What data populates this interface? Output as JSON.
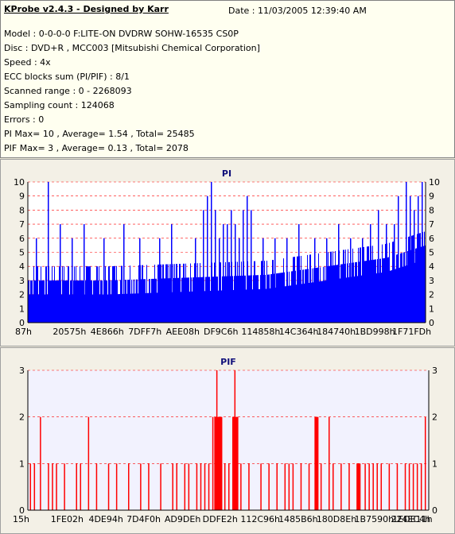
{
  "header": {
    "title": "KProbe v2.4.3 - Designed by Karr",
    "date": "Date : 11/03/2005 12:39:40 AM",
    "lines": [
      "Model : 0-0-0-0 F:LITE-ON DVDRW SOHW-16535 CS0P",
      "Disc : DVD+R , MCC003 [Mitsubishi Chemical Corporation]",
      "Speed : 4x",
      "ECC blocks sum (PI/PIF) : 8/1",
      "Scanned range : 0 - 2268093",
      "Sampling count : 124068",
      "Errors : 0",
      "PI Max= 10 , Average= 1.54 , Total= 25485",
      "PIF Max= 3 , Average= 0.13 , Total= 2078"
    ]
  },
  "colors": {
    "pi": "#0000ff",
    "pif": "#ff0000",
    "grid": "#ff0000"
  },
  "chart_data": [
    {
      "type": "bar",
      "title": "PI",
      "ylim": [
        0,
        10
      ],
      "yticks": [
        0,
        1,
        2,
        3,
        4,
        5,
        6,
        7,
        8,
        9,
        10
      ],
      "xtick_labels": [
        "87h",
        "20575h",
        "4E866h",
        "7DFF7h",
        "AEE08h",
        "DF9C6h",
        "114858h",
        "14C364h",
        "184740h",
        "1BD998h",
        "1F71FDh"
      ],
      "grid": "dashed horizontal",
      "baseline": [
        [
          0,
          3
        ],
        [
          0.2,
          3
        ],
        [
          0.4,
          3.2
        ],
        [
          0.6,
          3.4
        ],
        [
          0.75,
          4
        ],
        [
          0.9,
          4.6
        ],
        [
          1,
          5.5
        ]
      ],
      "spikes": [
        [
          0.02,
          6
        ],
        [
          0.03,
          1
        ],
        [
          0.05,
          10
        ],
        [
          0.08,
          7
        ],
        [
          0.11,
          6
        ],
        [
          0.14,
          7
        ],
        [
          0.19,
          6
        ],
        [
          0.24,
          7
        ],
        [
          0.28,
          6
        ],
        [
          0.33,
          6
        ],
        [
          0.36,
          7
        ],
        [
          0.42,
          6
        ],
        [
          0.44,
          8
        ],
        [
          0.45,
          9
        ],
        [
          0.46,
          10
        ],
        [
          0.47,
          8
        ],
        [
          0.48,
          6
        ],
        [
          0.49,
          7
        ],
        [
          0.5,
          7
        ],
        [
          0.51,
          8
        ],
        [
          0.52,
          7
        ],
        [
          0.53,
          6
        ],
        [
          0.54,
          8
        ],
        [
          0.55,
          9
        ],
        [
          0.56,
          8
        ],
        [
          0.59,
          6
        ],
        [
          0.62,
          6
        ],
        [
          0.65,
          6
        ],
        [
          0.68,
          7
        ],
        [
          0.72,
          6
        ],
        [
          0.75,
          6
        ],
        [
          0.78,
          7
        ],
        [
          0.81,
          6
        ],
        [
          0.84,
          6
        ],
        [
          0.86,
          7
        ],
        [
          0.88,
          8
        ],
        [
          0.9,
          7
        ],
        [
          0.92,
          7
        ],
        [
          0.93,
          9
        ],
        [
          0.95,
          10
        ],
        [
          0.96,
          9
        ],
        [
          0.97,
          8
        ],
        [
          0.98,
          9
        ],
        [
          0.99,
          10
        ]
      ]
    },
    {
      "type": "bar",
      "title": "PIF",
      "ylim": [
        0,
        3
      ],
      "yticks": [
        0,
        1,
        2,
        3
      ],
      "xtick_labels": [
        "15h",
        "1FE02h",
        "4DE94h",
        "7D4F0h",
        "AD9DEh",
        "DDFE2h",
        "112C96h",
        "1485B6h",
        "180D8Eh",
        "1B7590h",
        "1EDE11h",
        "224EC4h"
      ],
      "grid": "dashed horizontal",
      "spikes": [
        [
          0.005,
          1
        ],
        [
          0.015,
          1
        ],
        [
          0.03,
          2
        ],
        [
          0.05,
          1
        ],
        [
          0.06,
          1
        ],
        [
          0.07,
          1
        ],
        [
          0.09,
          1
        ],
        [
          0.12,
          1
        ],
        [
          0.13,
          1
        ],
        [
          0.15,
          2
        ],
        [
          0.17,
          1
        ],
        [
          0.2,
          1
        ],
        [
          0.22,
          1
        ],
        [
          0.25,
          1
        ],
        [
          0.28,
          1
        ],
        [
          0.3,
          1
        ],
        [
          0.33,
          1
        ],
        [
          0.36,
          1
        ],
        [
          0.37,
          1
        ],
        [
          0.39,
          1
        ],
        [
          0.4,
          1
        ],
        [
          0.42,
          1
        ],
        [
          0.43,
          1
        ],
        [
          0.44,
          1
        ],
        [
          0.45,
          1
        ],
        [
          0.46,
          2
        ],
        [
          0.47,
          3
        ],
        [
          0.475,
          2
        ],
        [
          0.48,
          2
        ],
        [
          0.49,
          1
        ],
        [
          0.5,
          1
        ],
        [
          0.51,
          2
        ],
        [
          0.515,
          3
        ],
        [
          0.52,
          2
        ],
        [
          0.53,
          1
        ],
        [
          0.55,
          1
        ],
        [
          0.58,
          1
        ],
        [
          0.6,
          1
        ],
        [
          0.62,
          1
        ],
        [
          0.64,
          1
        ],
        [
          0.65,
          1
        ],
        [
          0.66,
          1
        ],
        [
          0.68,
          1
        ],
        [
          0.7,
          1
        ],
        [
          0.72,
          1
        ],
        [
          0.73,
          1
        ],
        [
          0.75,
          2
        ],
        [
          0.76,
          1
        ],
        [
          0.78,
          1
        ],
        [
          0.8,
          1
        ],
        [
          0.82,
          1
        ],
        [
          0.84,
          1
        ],
        [
          0.85,
          1
        ],
        [
          0.86,
          1
        ],
        [
          0.87,
          1
        ],
        [
          0.88,
          1
        ],
        [
          0.9,
          1
        ],
        [
          0.92,
          1
        ],
        [
          0.94,
          1
        ],
        [
          0.95,
          1
        ],
        [
          0.96,
          1
        ],
        [
          0.97,
          1
        ],
        [
          0.98,
          1
        ],
        [
          0.99,
          2
        ]
      ],
      "dense": [
        [
          0.465,
          0.485,
          2
        ],
        [
          0.51,
          0.525,
          2
        ],
        [
          0.715,
          0.725,
          2
        ],
        [
          0.82,
          0.83,
          1
        ]
      ]
    }
  ]
}
